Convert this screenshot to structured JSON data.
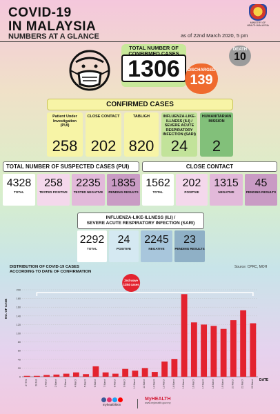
{
  "header": {
    "title_line1": "COVID-19",
    "title_line2": "IN MALAYSIA",
    "subtitle": "NUMBERS AT A GLANCE",
    "date": "as of 22nd March 2020, 5 pm",
    "ministry": "MINISTRY OF HEALTH MALAYSIA"
  },
  "summary": {
    "total_label": "TOTAL NUMBER OF CONFIRMED CASES",
    "total_value": "1306",
    "death_label": "DEATH",
    "death_value": "10",
    "discharged_label": "DISCHARGED",
    "discharged_value": "139"
  },
  "confirmed": {
    "heading": "CONFIRMED CASES",
    "cards": [
      {
        "label": "Patient Under Investigation (PUI)",
        "value": "258",
        "color": "#f7f4a6"
      },
      {
        "label": "CLOSE CONTACT",
        "value": "202",
        "color": "#f7f4a6"
      },
      {
        "label": "TABLIGH",
        "value": "820",
        "color": "#f7f4a6"
      },
      {
        "label": "INFLUENZA-LIKE-ILLNESS (ILI) / SEVERE ACUTE RESPIRATORY INFECTION (SARI)",
        "value": "24",
        "color": "#c2e39a"
      },
      {
        "label": "HUMANITARIAN MISSION",
        "value": "2",
        "color": "#82c07a"
      }
    ]
  },
  "pui": {
    "heading": "TOTAL NUMBER OF SUSPECTED CASES (PUI)",
    "stats": [
      {
        "value": "4328",
        "label": "TOTAL",
        "color": "#ffffff"
      },
      {
        "value": "258",
        "label": "TESTED POSITIVE",
        "color": "#f4d8ec"
      },
      {
        "value": "2235",
        "label": "TESTED NEGATIVE",
        "color": "#e2b9da"
      },
      {
        "value": "1835",
        "label": "PENDING RESULTS",
        "color": "#c99bc4"
      }
    ]
  },
  "close_contact": {
    "heading": "CLOSE CONTACT",
    "stats": [
      {
        "value": "1562",
        "label": "TOTAL",
        "color": "#ffffff"
      },
      {
        "value": "202",
        "label": "POSITIVE",
        "color": "#f4d8ec"
      },
      {
        "value": "1315",
        "label": "NEGATIVE",
        "color": "#e2b9da"
      },
      {
        "value": "45",
        "label": "PENDING RESULTS",
        "color": "#c99bc4"
      }
    ]
  },
  "sari": {
    "heading_line1": "INFLUENZA-LIKE-ILLNESS (ILI) /",
    "heading_line2": "SEVERE ACUTE RESPIRATORY INFECTION (SARI)",
    "stats": [
      {
        "value": "2292",
        "label": "TOTAL",
        "color": "#ffffff"
      },
      {
        "value": "24",
        "label": "POSITIVE",
        "color": "#d5e9f2"
      },
      {
        "value": "2245",
        "label": "NEGATIVE",
        "color": "#a8c6dc"
      },
      {
        "value": "23",
        "label": "PENDING RESULTS",
        "color": "#8fb0c6"
      }
    ]
  },
  "chart_data": {
    "type": "bar",
    "title_line1": "DISTRIBUTION OF COVID-19 CASES",
    "title_line2": "ACCORDING TO DATE OF CONFIRMATION",
    "source": "Source: CPRC, MOH",
    "ylabel": "NO. OF CASE",
    "xlabel": "DATE",
    "ylim": [
      0,
      200
    ],
    "yticks": [
      0,
      20,
      40,
      60,
      80,
      100,
      120,
      140,
      160,
      180,
      200
    ],
    "categories": [
      "27 Feb",
      "28 Feb",
      "1 March",
      "2 March",
      "3 March",
      "4 March",
      "5 March",
      "6 March",
      "7 March",
      "8 March",
      "9 March",
      "10 March",
      "11 March",
      "12 March",
      "13 March",
      "14 March",
      "15 March",
      "16 March",
      "17 March",
      "18 March",
      "19 March",
      "20 March",
      "21 March",
      "22 March"
    ],
    "values": [
      2,
      2,
      4,
      5,
      7,
      10,
      6,
      24,
      10,
      7,
      18,
      14,
      20,
      11,
      35,
      41,
      190,
      125,
      120,
      117,
      110,
      130,
      153,
      123
    ],
    "annotation": {
      "line1": "2nd wave",
      "line2": "1284 cases"
    },
    "bar_color": "#e3232f"
  },
  "footer": {
    "social_handle": "myhealthkkm",
    "brand": "MyHEALTH",
    "brand_sub": "www.myhealth.gov.my",
    "social_colors": [
      "#3b5998",
      "#e1306c",
      "#1da1f2",
      "#ff0000"
    ]
  }
}
